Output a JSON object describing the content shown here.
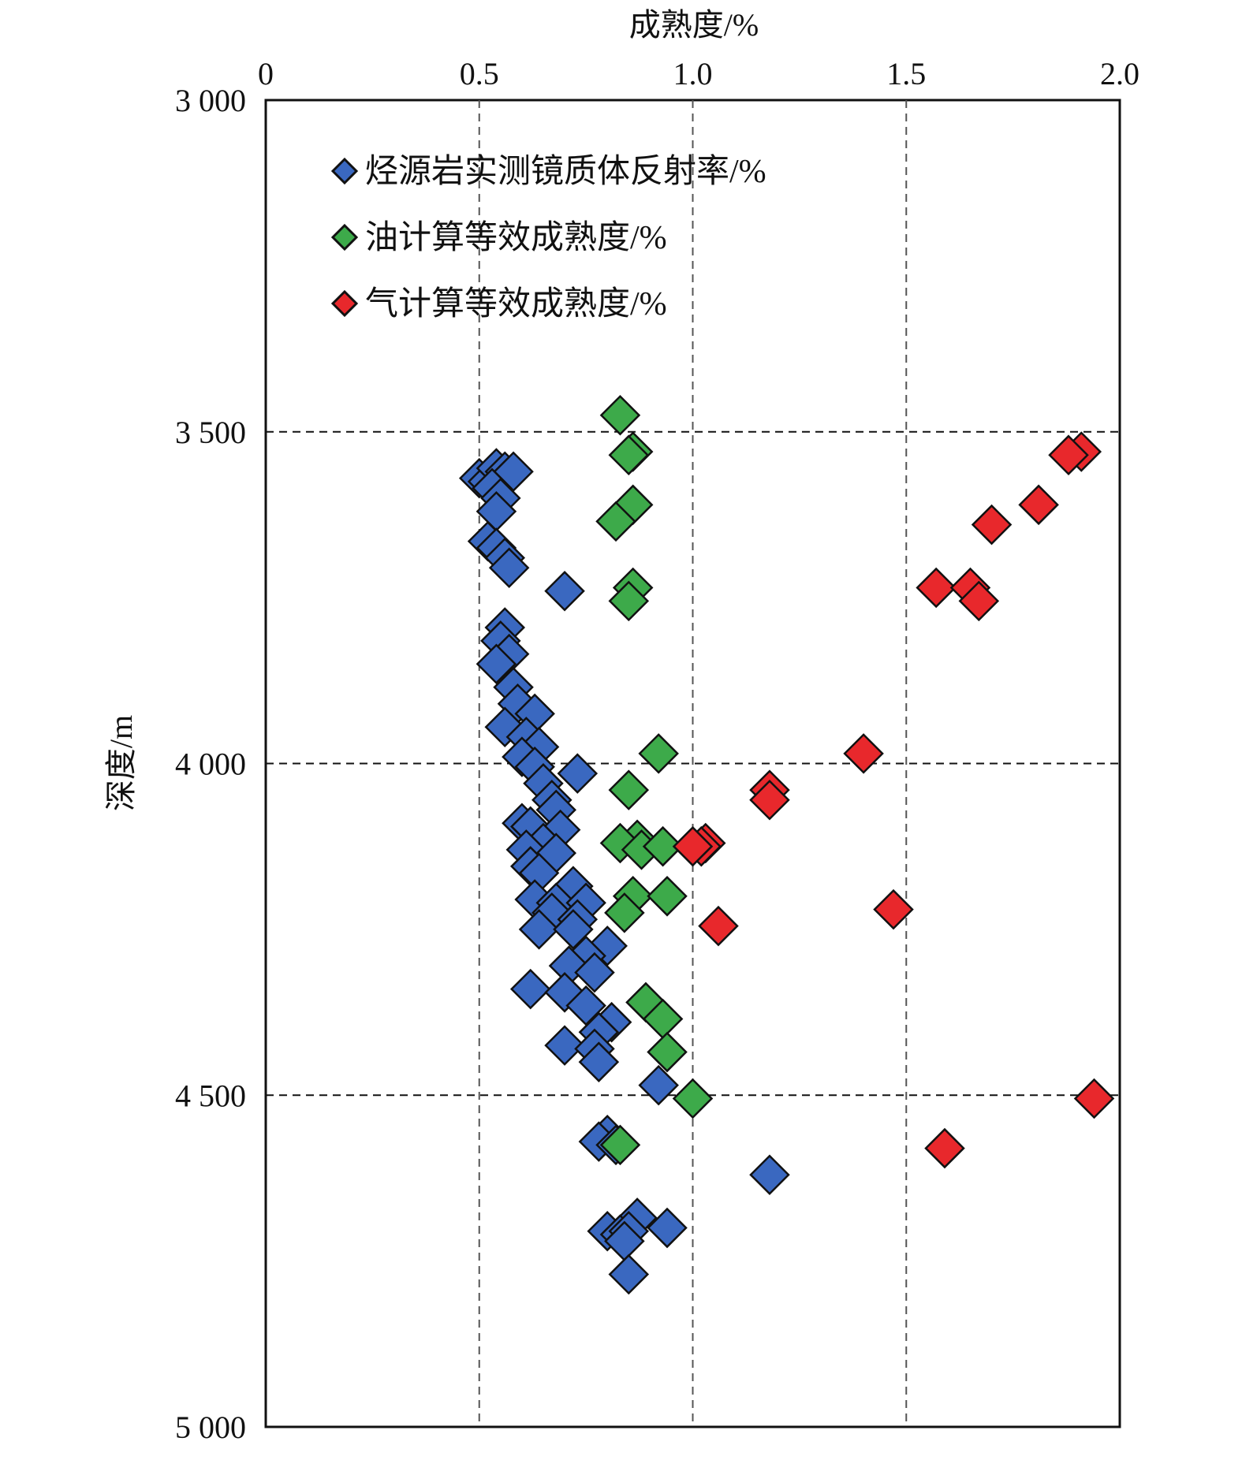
{
  "chart_data": {
    "type": "scatter",
    "xlabel": "成熟度/%",
    "ylabel": "深度/m",
    "xlim": [
      0,
      2.0
    ],
    "ylim": [
      3000,
      5000
    ],
    "y_inverted": true,
    "x_axis_position": "top",
    "x_ticks": [
      0,
      0.5,
      1.0,
      1.5,
      2.0
    ],
    "x_tick_labels": [
      "0",
      "0.5",
      "1.0",
      "1.5",
      "2.0"
    ],
    "y_ticks": [
      3000,
      3500,
      4000,
      4500,
      5000
    ],
    "y_tick_labels": [
      "3 000",
      "3 500",
      "4 000",
      "4 500",
      "5 000"
    ],
    "grid": {
      "vertical": [
        0.5,
        1.0,
        1.5
      ],
      "horizontal": [
        3500,
        4000,
        4500
      ],
      "style": "dashed"
    },
    "legend_position": "top-left",
    "marker": "diamond",
    "series": [
      {
        "name": "烃源岩实测镜质体反射率/%",
        "color": "#3a68c0",
        "points": [
          [
            0.5,
            3570
          ],
          [
            0.52,
            3575
          ],
          [
            0.54,
            3555
          ],
          [
            0.56,
            3560
          ],
          [
            0.58,
            3560
          ],
          [
            0.53,
            3585
          ],
          [
            0.55,
            3600
          ],
          [
            0.54,
            3620
          ],
          [
            0.52,
            3665
          ],
          [
            0.54,
            3675
          ],
          [
            0.56,
            3690
          ],
          [
            0.57,
            3705
          ],
          [
            0.7,
            3740
          ],
          [
            0.56,
            3795
          ],
          [
            0.55,
            3815
          ],
          [
            0.57,
            3835
          ],
          [
            0.54,
            3850
          ],
          [
            0.58,
            3885
          ],
          [
            0.59,
            3910
          ],
          [
            0.63,
            3925
          ],
          [
            0.56,
            3945
          ],
          [
            0.61,
            3960
          ],
          [
            0.64,
            3975
          ],
          [
            0.6,
            3990
          ],
          [
            0.63,
            4005
          ],
          [
            0.73,
            4015
          ],
          [
            0.65,
            4030
          ],
          [
            0.67,
            4055
          ],
          [
            0.68,
            4070
          ],
          [
            0.6,
            4090
          ],
          [
            0.62,
            4095
          ],
          [
            0.69,
            4100
          ],
          [
            0.65,
            4120
          ],
          [
            0.61,
            4130
          ],
          [
            0.68,
            4135
          ],
          [
            0.62,
            4155
          ],
          [
            0.64,
            4165
          ],
          [
            0.72,
            4185
          ],
          [
            0.63,
            4205
          ],
          [
            0.68,
            4210
          ],
          [
            0.75,
            4210
          ],
          [
            0.67,
            4225
          ],
          [
            0.73,
            4235
          ],
          [
            0.64,
            4250
          ],
          [
            0.72,
            4250
          ],
          [
            0.8,
            4275
          ],
          [
            0.75,
            4290
          ],
          [
            0.71,
            4305
          ],
          [
            0.77,
            4315
          ],
          [
            0.62,
            4340
          ],
          [
            0.7,
            4345
          ],
          [
            0.75,
            4365
          ],
          [
            0.81,
            4390
          ],
          [
            0.78,
            4405
          ],
          [
            0.7,
            4425
          ],
          [
            0.77,
            4430
          ],
          [
            0.78,
            4450
          ],
          [
            0.92,
            4485
          ],
          [
            0.8,
            4560
          ],
          [
            0.78,
            4570
          ],
          [
            0.82,
            4575
          ],
          [
            1.18,
            4620
          ],
          [
            0.87,
            4685
          ],
          [
            0.94,
            4700
          ],
          [
            0.8,
            4705
          ],
          [
            0.83,
            4710
          ],
          [
            0.85,
            4705
          ],
          [
            0.84,
            4720
          ],
          [
            0.85,
            4770
          ]
        ]
      },
      {
        "name": "油计算等效成熟度/%",
        "color": "#3daa4a",
        "points": [
          [
            0.83,
            3475
          ],
          [
            0.86,
            3530
          ],
          [
            0.85,
            3535
          ],
          [
            0.86,
            3610
          ],
          [
            0.82,
            3635
          ],
          [
            0.86,
            3735
          ],
          [
            0.85,
            3755
          ],
          [
            0.92,
            3985
          ],
          [
            0.85,
            4040
          ],
          [
            0.87,
            4115
          ],
          [
            0.83,
            4120
          ],
          [
            0.88,
            4130
          ],
          [
            0.93,
            4125
          ],
          [
            0.86,
            4200
          ],
          [
            0.94,
            4200
          ],
          [
            0.84,
            4225
          ],
          [
            0.89,
            4360
          ],
          [
            0.93,
            4385
          ],
          [
            0.94,
            4435
          ],
          [
            1.0,
            4505
          ],
          [
            0.83,
            4575
          ]
        ]
      },
      {
        "name": "气计算等效成熟度/%",
        "color": "#e8282c",
        "points": [
          [
            1.91,
            3530
          ],
          [
            1.88,
            3535
          ],
          [
            1.81,
            3610
          ],
          [
            1.7,
            3640
          ],
          [
            1.57,
            3735
          ],
          [
            1.65,
            3735
          ],
          [
            1.67,
            3755
          ],
          [
            1.4,
            3985
          ],
          [
            1.18,
            4040
          ],
          [
            1.18,
            4055
          ],
          [
            1.03,
            4120
          ],
          [
            1.02,
            4125
          ],
          [
            1.0,
            4125
          ],
          [
            1.47,
            4220
          ],
          [
            1.06,
            4245
          ],
          [
            1.94,
            4505
          ],
          [
            1.59,
            4580
          ]
        ]
      }
    ]
  }
}
